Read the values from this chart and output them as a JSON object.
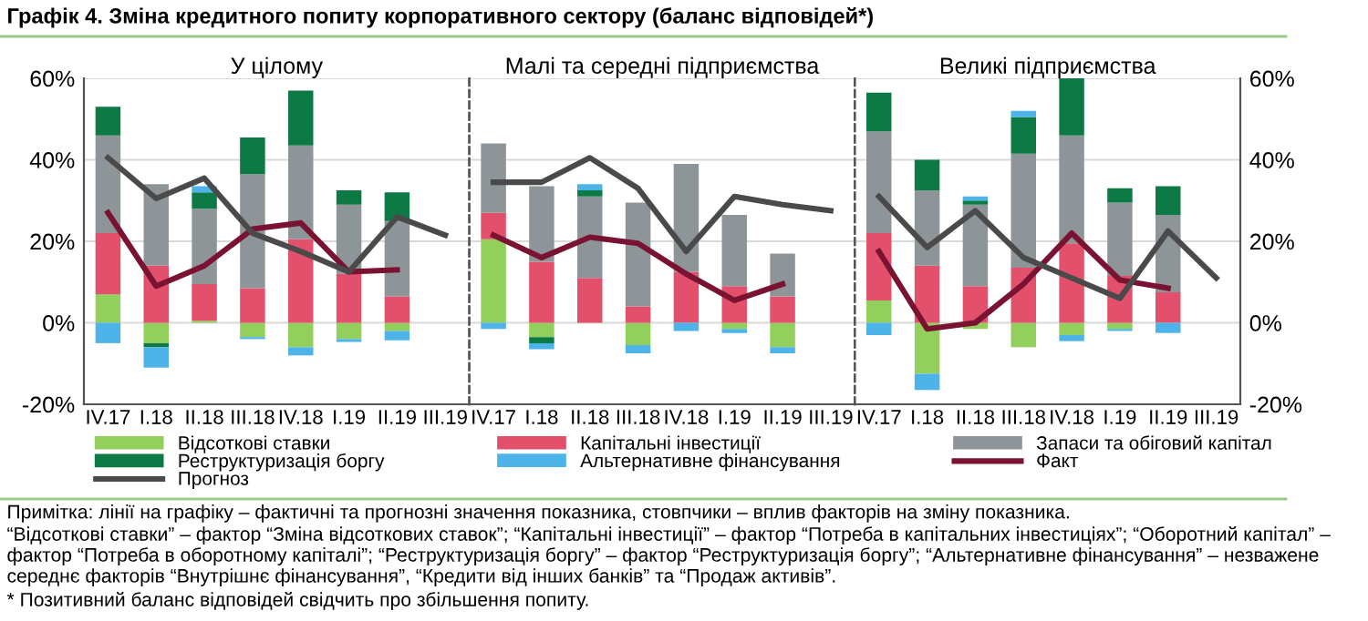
{
  "chart_data": [
    {
      "type": "bar",
      "stacked": true,
      "title": "У цілому",
      "categories": [
        "IV.17",
        "I.18",
        "II.18",
        "III.18",
        "IV.18",
        "I.19",
        "II.19",
        "III.19"
      ],
      "ylim": [
        -20,
        60
      ],
      "yticks": [
        {
          "value": -20,
          "label": "-20%"
        },
        {
          "value": 0,
          "label": "0%"
        },
        {
          "value": 20,
          "label": "20%"
        },
        {
          "value": 40,
          "label": "40%"
        },
        {
          "value": 60,
          "label": "60%"
        }
      ],
      "grid": "y",
      "legend": "bottom",
      "series": [
        {
          "name": "Відсоткові ставки",
          "color": "#92cf5c",
          "values": [
            7,
            -5,
            0.5,
            -3.5,
            -6,
            -4,
            -2,
            null
          ]
        },
        {
          "name": "Капітальні інвестиції",
          "color": "#e2506b",
          "values": [
            15,
            14,
            9,
            8.5,
            20.5,
            12,
            6.5,
            null
          ]
        },
        {
          "name": "Запаси та обіговий капітал",
          "color": "#8e9598",
          "values": [
            24,
            20,
            18.5,
            28,
            23,
            17,
            18.5,
            null
          ]
        },
        {
          "name": "Реструктуризація боргу",
          "color": "#0d7a45",
          "values": [
            7,
            -1,
            4,
            9,
            13.5,
            3.5,
            7,
            null
          ]
        },
        {
          "name": "Альтернативне фінансування",
          "color": "#4db3e8",
          "values": [
            -5,
            -5,
            1.5,
            -0.5,
            -2,
            -0.7,
            -2.3,
            null
          ]
        },
        {
          "name": "Факт",
          "type": "line",
          "color": "#7a1232",
          "values": [
            27,
            9,
            14,
            23,
            24.5,
            12.5,
            13,
            null
          ]
        },
        {
          "name": "Прогноз",
          "type": "line",
          "color": "#4a4a4a",
          "values": [
            40.5,
            30.5,
            35.5,
            22,
            17.5,
            12.5,
            26,
            21.5
          ]
        }
      ],
      "annotations": [
        "Графік 4. Зміна кредитного попиту корпоративного сектору (баланс відповідей*)",
        "Примітка: лінії на графіку – фактичні та прогнозні значення показника, стовпчики – вплив факторів на зміну показника.",
        "“Відсоткові ставки” – фактор “Зміна відсоткових ставок”; “Капітальні інвестиції” – фактор “Потреба в капітальних інвестиціях”; “Оборотний капітал” – фактор “Потреба в оборотному капіталі”; “Реструктуризація боргу” – фактор “Реструктуризація боргу”; “Альтернативне фінансування” – незважене середнє факторів “Внутрішнє фінансування”, “Кредити від інших банків” та “Продаж активів”.",
        "* Позитивний баланс відповідей свідчить про збільшення попиту."
      ]
    },
    {
      "type": "bar",
      "stacked": true,
      "title": "Малі та середні підприємства",
      "categories": [
        "IV.17",
        "I.18",
        "II.18",
        "III.18",
        "IV.18",
        "I.19",
        "II.19",
        "III.19"
      ],
      "ylim": [
        -20,
        60
      ],
      "yticks": [
        {
          "value": -20,
          "label": null
        },
        {
          "value": 0,
          "label": null
        },
        {
          "value": 20,
          "label": null
        },
        {
          "value": 40,
          "label": null
        },
        {
          "value": 60,
          "label": null
        }
      ],
      "tick_labels": "x",
      "grid": "y",
      "series": [
        {
          "color": "#92cf5c",
          "values": [
            20.5,
            -3.5,
            0,
            -5.5,
            0,
            -1.5,
            -6,
            null
          ]
        },
        {
          "color": "#e2506b",
          "values": [
            6.5,
            15,
            11,
            4,
            12.5,
            9,
            6.5,
            null
          ]
        },
        {
          "color": "#8e9598",
          "values": [
            17,
            18.5,
            20,
            25.5,
            26.5,
            17.5,
            10.5,
            null
          ]
        },
        {
          "color": "#0d7a45",
          "values": [
            0,
            -1.5,
            1.5,
            0,
            0,
            0,
            0,
            null
          ]
        },
        {
          "color": "#4db3e8",
          "values": [
            -1.5,
            -1.5,
            1.5,
            -2,
            -2,
            -1,
            -1.5,
            null
          ]
        },
        {
          "type": "line",
          "color": "#7a1232",
          "values": [
            21.5,
            16,
            21,
            19.5,
            12,
            5.5,
            9.5,
            null
          ]
        },
        {
          "type": "line",
          "color": "#4a4a4a",
          "values": [
            34.5,
            34.5,
            40.5,
            33,
            17.5,
            31,
            29,
            27.5
          ]
        }
      ]
    },
    {
      "type": "bar",
      "stacked": true,
      "title": "Великі підприємства",
      "categories": [
        "IV.17",
        "I.18",
        "II.18",
        "III.18",
        "IV.18",
        "I.19",
        "II.19",
        "III.19"
      ],
      "ylim": [
        -20,
        60
      ],
      "yticks": [
        {
          "value": -20,
          "label": "-20%"
        },
        {
          "value": 0,
          "label": "0%"
        },
        {
          "value": 20,
          "label": "20%"
        },
        {
          "value": 40,
          "label": "40%"
        },
        {
          "value": 60,
          "label": "60%"
        }
      ],
      "grid": "y",
      "series": [
        {
          "color": "#92cf5c",
          "values": [
            5.5,
            -12.5,
            -1.5,
            -6,
            -3,
            -1.5,
            0,
            null
          ]
        },
        {
          "color": "#e2506b",
          "values": [
            16.5,
            14,
            9,
            13.5,
            19.5,
            11.5,
            7.5,
            null
          ]
        },
        {
          "color": "#8e9598",
          "values": [
            25,
            18.5,
            20,
            28,
            26.5,
            18,
            19,
            null
          ]
        },
        {
          "color": "#0d7a45",
          "values": [
            9.5,
            7.5,
            1,
            9,
            14,
            3.5,
            7,
            null
          ]
        },
        {
          "color": "#4db3e8",
          "values": [
            -3,
            -4,
            1,
            1.5,
            -1.5,
            -0.5,
            -2.5,
            null
          ]
        },
        {
          "type": "line",
          "color": "#7a1232",
          "values": [
            17.5,
            -1.5,
            0,
            9.5,
            22,
            10.5,
            8.5,
            null
          ]
        },
        {
          "type": "line",
          "color": "#4a4a4a",
          "values": [
            31,
            18.5,
            27.5,
            16,
            11,
            6,
            22.5,
            11
          ]
        }
      ]
    }
  ]
}
